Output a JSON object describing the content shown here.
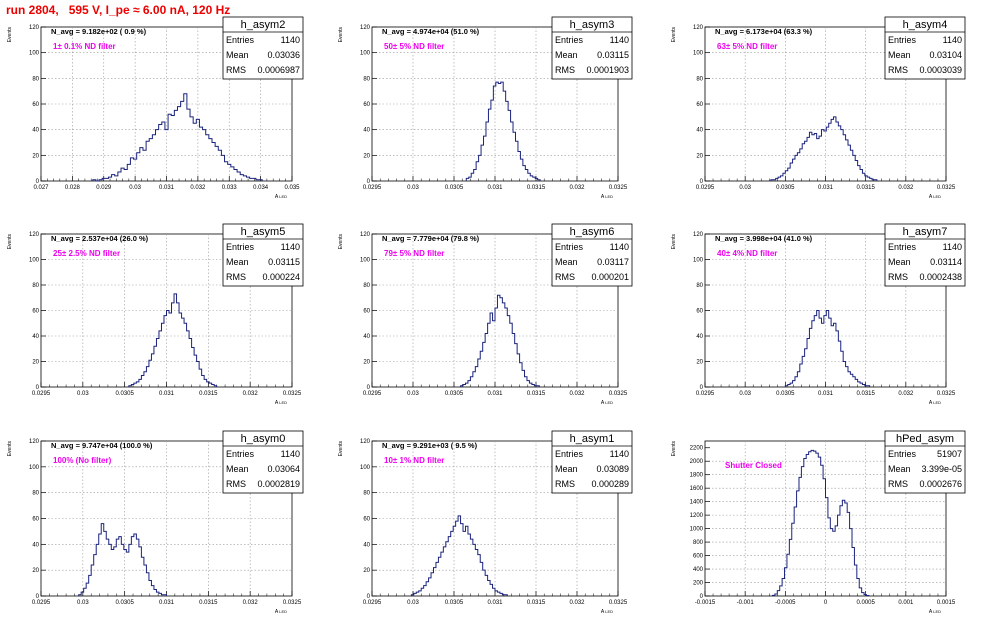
{
  "title": "run 2804,   595 V, I_pe ≈ 6.00 nA, 120 Hz",
  "colors": {
    "histogram": "#1a237e",
    "annotation": "#ee00ee",
    "title": "#ee0000",
    "grid": "#999999"
  },
  "chart_data": [
    {
      "type": "histogram",
      "name": "h_asym2",
      "xlabel": "A_LED",
      "ylabel": "Events",
      "xlim": [
        0.027,
        0.035
      ],
      "ylim": [
        0,
        120
      ],
      "xticks": [
        "0.027",
        "0.028",
        "0.029",
        "0.03",
        "0.031",
        "0.032",
        "0.033",
        "0.034",
        "0.035"
      ],
      "yticks": [
        "0",
        "20",
        "40",
        "60",
        "80",
        "100",
        "120"
      ],
      "navg": "N_avg = 9.182e+02 ( 0.9 %)",
      "note": "1± 0.1% ND filter",
      "stats": {
        "entries_label": "Entries",
        "entries": "1140",
        "mean_label": "Mean",
        "mean": "0.03036",
        "rms_label": "RMS",
        "rms": "0.0006987"
      },
      "bins": {
        "start": 0.02865,
        "width": 0.0001,
        "counts": [
          1,
          0,
          1,
          2,
          2,
          3,
          5,
          4,
          7,
          10,
          9,
          13,
          18,
          17,
          22,
          26,
          24,
          31,
          33,
          36,
          40,
          44,
          46,
          40,
          52,
          51,
          55,
          58,
          62,
          68,
          56,
          50,
          45,
          48,
          42,
          40,
          36,
          33,
          30,
          27,
          24,
          20,
          15,
          13,
          11,
          9,
          7,
          5,
          4,
          3,
          2,
          2,
          1,
          1
        ]
      }
    },
    {
      "type": "histogram",
      "name": "h_asym3",
      "xlabel": "A_LED",
      "ylabel": "Events",
      "xlim": [
        0.0295,
        0.0325
      ],
      "ylim": [
        0,
        120
      ],
      "xticks": [
        "0.0295",
        "0.03",
        "0.0305",
        "0.031",
        "0.0315",
        "0.032",
        "0.0325"
      ],
      "yticks": [
        "0",
        "20",
        "40",
        "60",
        "80",
        "100",
        "120"
      ],
      "navg": "N_avg = 4.974e+04 (51.0 %)",
      "note": "50± 5% ND filter",
      "stats": {
        "entries_label": "Entries",
        "entries": "1140",
        "mean_label": "Mean",
        "mean": "0.03115",
        "rms_label": "RMS",
        "rms": "0.0001903"
      },
      "bins": {
        "start": 0.03065,
        "width": 3e-05,
        "counts": [
          2,
          3,
          6,
          9,
          15,
          20,
          28,
          35,
          46,
          56,
          63,
          74,
          77,
          76,
          77,
          70,
          62,
          55,
          46,
          38,
          31,
          23,
          17,
          12,
          9,
          6,
          4,
          3,
          2,
          1
        ]
      }
    },
    {
      "type": "histogram",
      "name": "h_asym4",
      "xlabel": "A_LED",
      "ylabel": "Events",
      "xlim": [
        0.0295,
        0.0325
      ],
      "ylim": [
        0,
        120
      ],
      "xticks": [
        "0.0295",
        "0.03",
        "0.0305",
        "0.031",
        "0.0315",
        "0.032",
        "0.0325"
      ],
      "yticks": [
        "0",
        "20",
        "40",
        "60",
        "80",
        "100",
        "120"
      ],
      "navg": "N_avg = 6.173e+04 (63.3 %)",
      "note": "63± 5% ND filter",
      "stats": {
        "entries_label": "Entries",
        "entries": "1140",
        "mean_label": "Mean",
        "mean": "0.03104",
        "rms_label": "RMS",
        "rms": "0.0003039"
      },
      "bins": {
        "start": 0.03032,
        "width": 3e-05,
        "counts": [
          1,
          1,
          2,
          3,
          4,
          6,
          8,
          10,
          14,
          17,
          20,
          22,
          25,
          29,
          31,
          34,
          38,
          36,
          37,
          33,
          35,
          40,
          39,
          42,
          45,
          48,
          50,
          46,
          43,
          40,
          36,
          32,
          28,
          24,
          20,
          16,
          12,
          9,
          6,
          4,
          3,
          2,
          1,
          1
        ]
      }
    },
    {
      "type": "histogram",
      "name": "h_asym5",
      "xlabel": "A_LED",
      "ylabel": "Events",
      "xlim": [
        0.0295,
        0.0325
      ],
      "ylim": [
        0,
        120
      ],
      "xticks": [
        "0.0295",
        "0.03",
        "0.0305",
        "0.031",
        "0.0315",
        "0.032",
        "0.0325"
      ],
      "yticks": [
        "0",
        "20",
        "40",
        "60",
        "80",
        "100",
        "120"
      ],
      "navg": "N_avg = 2.537e+04 (26.0 %)",
      "note": "25± 2.5% ND filter",
      "stats": {
        "entries_label": "Entries",
        "entries": "1140",
        "mean_label": "Mean",
        "mean": "0.03115",
        "rms_label": "RMS",
        "rms": "0.000224"
      },
      "bins": {
        "start": 0.03055,
        "width": 3e-05,
        "counts": [
          1,
          2,
          3,
          4,
          6,
          9,
          12,
          16,
          21,
          26,
          32,
          38,
          44,
          50,
          56,
          60,
          58,
          66,
          73,
          66,
          58,
          54,
          50,
          44,
          38,
          31,
          25,
          20,
          14,
          9,
          6,
          4,
          3,
          2,
          1
        ]
      }
    },
    {
      "type": "histogram",
      "name": "h_asym6",
      "xlabel": "A_LED",
      "ylabel": "Events",
      "xlim": [
        0.0295,
        0.0325
      ],
      "ylim": [
        0,
        120
      ],
      "xticks": [
        "0.0295",
        "0.03",
        "0.0305",
        "0.031",
        "0.0315",
        "0.032",
        "0.0325"
      ],
      "yticks": [
        "0",
        "20",
        "40",
        "60",
        "80",
        "100",
        "120"
      ],
      "navg": "N_avg = 7.779e+04 (79.8 %)",
      "note": "79± 5% ND filter",
      "stats": {
        "entries_label": "Entries",
        "entries": "1140",
        "mean_label": "Mean",
        "mean": "0.03117",
        "rms_label": "RMS",
        "rms": "0.000201"
      },
      "bins": {
        "start": 0.03058,
        "width": 3e-05,
        "counts": [
          1,
          2,
          3,
          5,
          8,
          12,
          16,
          22,
          28,
          35,
          42,
          50,
          58,
          52,
          62,
          72,
          70,
          66,
          62,
          56,
          50,
          42,
          34,
          26,
          19,
          13,
          8,
          5,
          3,
          2,
          1,
          1
        ]
      }
    },
    {
      "type": "histogram",
      "name": "h_asym7",
      "xlabel": "A_LED",
      "ylabel": "Events",
      "xlim": [
        0.0295,
        0.0325
      ],
      "ylim": [
        0,
        120
      ],
      "xticks": [
        "0.0295",
        "0.03",
        "0.0305",
        "0.031",
        "0.0315",
        "0.032",
        "0.0325"
      ],
      "yticks": [
        "0",
        "20",
        "40",
        "60",
        "80",
        "100",
        "120"
      ],
      "navg": "N_avg = 3.998e+04 (41.0 %)",
      "note": "40± 4% ND filter",
      "stats": {
        "entries_label": "Entries",
        "entries": "1140",
        "mean_label": "Mean",
        "mean": "0.03114",
        "rms_label": "RMS",
        "rms": "0.0002438"
      },
      "bins": {
        "start": 0.0305,
        "width": 3e-05,
        "counts": [
          1,
          2,
          3,
          5,
          8,
          12,
          18,
          24,
          30,
          38,
          46,
          52,
          56,
          60,
          54,
          50,
          56,
          60,
          54,
          48,
          50,
          44,
          36,
          28,
          20,
          16,
          12,
          10,
          8,
          6,
          4,
          3,
          2,
          1,
          1
        ]
      }
    },
    {
      "type": "histogram",
      "name": "h_asym0",
      "xlabel": "A_LED",
      "ylabel": "Events",
      "xlim": [
        0.0295,
        0.0325
      ],
      "ylim": [
        0,
        120
      ],
      "xticks": [
        "0.0295",
        "0.03",
        "0.0305",
        "0.031",
        "0.0315",
        "0.032",
        "0.0325"
      ],
      "yticks": [
        "0",
        "20",
        "40",
        "60",
        "80",
        "100",
        "120"
      ],
      "navg": "N_avg = 9.747e+04 (100.0 %)",
      "note": "100% (No filter)",
      "stats": {
        "entries_label": "Entries",
        "entries": "1140",
        "mean_label": "Mean",
        "mean": "0.03064",
        "rms_label": "RMS",
        "rms": "0.0002819"
      },
      "bins": {
        "start": 0.02995,
        "width": 3e-05,
        "counts": [
          1,
          3,
          6,
          10,
          16,
          24,
          32,
          40,
          48,
          56,
          50,
          44,
          40,
          36,
          38,
          44,
          46,
          40,
          36,
          34,
          40,
          46,
          48,
          44,
          38,
          30,
          24,
          18,
          12,
          8,
          5,
          3,
          2,
          1,
          1
        ]
      }
    },
    {
      "type": "histogram",
      "name": "h_asym1",
      "xlabel": "A_LED",
      "ylabel": "Events",
      "xlim": [
        0.0295,
        0.0325
      ],
      "ylim": [
        0,
        120
      ],
      "xticks": [
        "0.0295",
        "0.03",
        "0.0305",
        "0.031",
        "0.0315",
        "0.032",
        "0.0325"
      ],
      "yticks": [
        "0",
        "20",
        "40",
        "60",
        "80",
        "100",
        "120"
      ],
      "navg": "N_avg = 9.291e+03 ( 9.5 %)",
      "note": "10± 1% ND filter",
      "stats": {
        "entries_label": "Entries",
        "entries": "1140",
        "mean_label": "Mean",
        "mean": "0.03089",
        "rms_label": "RMS",
        "rms": "0.000289"
      },
      "bins": {
        "start": 0.02998,
        "width": 3e-05,
        "counts": [
          1,
          2,
          3,
          4,
          6,
          8,
          11,
          14,
          18,
          22,
          26,
          30,
          34,
          38,
          42,
          46,
          50,
          54,
          58,
          62,
          56,
          50,
          54,
          48,
          44,
          40,
          36,
          32,
          26,
          20,
          16,
          12,
          9,
          6,
          4,
          3,
          2,
          1,
          1
        ]
      }
    },
    {
      "type": "histogram",
      "name": "hPed_asym",
      "xlabel": "A_LED",
      "ylabel": "Events",
      "xlim": [
        -0.0015,
        0.0015
      ],
      "ylim": [
        0,
        2300
      ],
      "xticks": [
        "-0.0015",
        "-0.001",
        "-0.0005",
        "0",
        "0.0005",
        "0.001",
        "0.0015"
      ],
      "yticks": [
        "0",
        "200",
        "400",
        "600",
        "800",
        "1000",
        "1200",
        "1400",
        "1600",
        "1800",
        "2000",
        "2200"
      ],
      "navg": "",
      "note": "Shutter Closed",
      "stats": {
        "entries_label": "Entries",
        "entries": "51907",
        "mean_label": "Mean",
        "mean": "3.399e-05",
        "rms_label": "RMS",
        "rms": "0.0002676"
      },
      "bins": {
        "start": -0.00066,
        "width": 3e-05,
        "counts": [
          10,
          30,
          80,
          150,
          260,
          420,
          620,
          840,
          1080,
          1320,
          1560,
          1760,
          1920,
          2040,
          2100,
          2140,
          2160,
          2150,
          2120,
          2060,
          1940,
          1740,
          1460,
          1160,
          1000,
          960,
          1040,
          1200,
          1340,
          1420,
          1380,
          1240,
          1000,
          720,
          460,
          260,
          120,
          50,
          20,
          8
        ]
      }
    }
  ]
}
